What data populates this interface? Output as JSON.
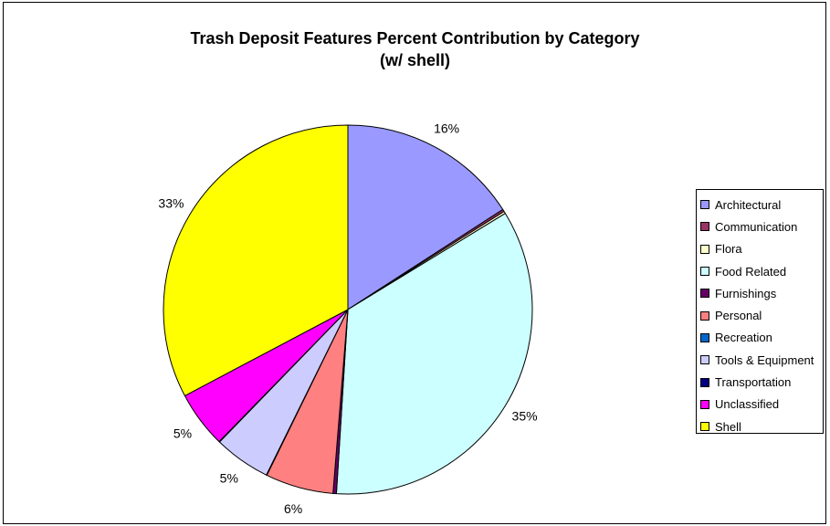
{
  "chart_data": {
    "type": "pie",
    "title_lines": [
      "Trash Deposit Features Percent Contribution by Category",
      "(w/ shell)"
    ],
    "slices": [
      {
        "name": "Architectural",
        "value": 16,
        "label": "16%",
        "color": "#9999ff"
      },
      {
        "name": "Communication",
        "value": 0.2,
        "label": "",
        "color": "#993366"
      },
      {
        "name": "Flora",
        "value": 0.2,
        "label": "",
        "color": "#ffffcc"
      },
      {
        "name": "Food Related",
        "value": 35,
        "label": "35%",
        "color": "#ccffff"
      },
      {
        "name": "Furnishings",
        "value": 0.3,
        "label": "",
        "color": "#660066"
      },
      {
        "name": "Personal",
        "value": 6,
        "label": "6%",
        "color": "#ff8080"
      },
      {
        "name": "Recreation",
        "value": 0.05,
        "label": "",
        "color": "#0066cc"
      },
      {
        "name": "Tools & Equipment",
        "value": 5,
        "label": "5%",
        "color": "#ccccff"
      },
      {
        "name": "Transportation",
        "value": 0.05,
        "label": "",
        "color": "#000080"
      },
      {
        "name": "Unclassified",
        "value": 5,
        "label": "5%",
        "color": "#ff00ff"
      },
      {
        "name": "Shell",
        "value": 33,
        "label": "33%",
        "color": "#ffff00"
      }
    ],
    "start_angle": "12 o'clock, clockwise",
    "legend_position": "right"
  }
}
